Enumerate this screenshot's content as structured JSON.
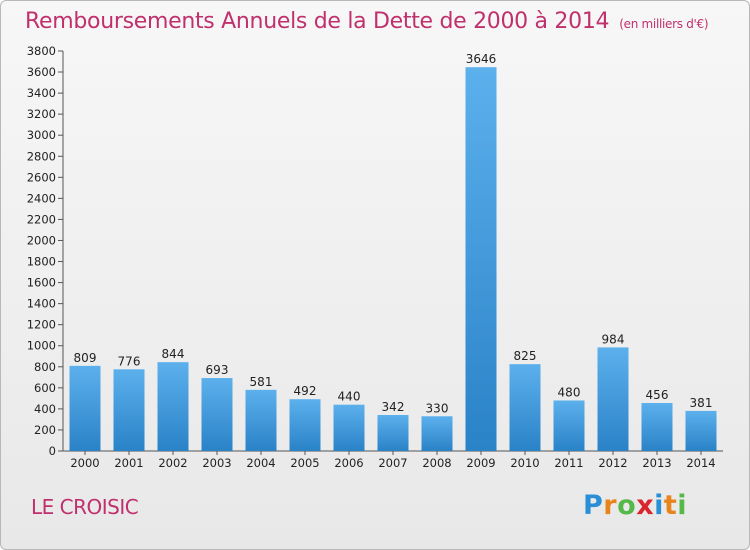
{
  "title": "Remboursements Annuels de la Dette de 2000 à 2014",
  "unit": "(en milliers d'€)",
  "commune": "LE CROISIC",
  "brand": {
    "letters": [
      "P",
      "r",
      "o",
      "x",
      "i",
      "t",
      "i"
    ],
    "colors": [
      "#2a8fd6",
      "#e8841c",
      "#54b948",
      "#d9262e",
      "#2a8fd6",
      "#e8841c",
      "#54b948"
    ]
  },
  "colors": {
    "bar": "#3d98d8",
    "bar_light": "#5fb0ea",
    "title": "#c0306d"
  },
  "chart_data": {
    "type": "bar",
    "categories": [
      "2000",
      "2001",
      "2002",
      "2003",
      "2004",
      "2005",
      "2006",
      "2007",
      "2008",
      "2009",
      "2010",
      "2011",
      "2012",
      "2013",
      "2014"
    ],
    "values": [
      809,
      776,
      844,
      693,
      581,
      492,
      440,
      342,
      330,
      3646,
      825,
      480,
      984,
      456,
      381
    ],
    "ylim": [
      0,
      3800
    ],
    "yticks": [
      0,
      200,
      400,
      600,
      800,
      1000,
      1200,
      1400,
      1600,
      1800,
      2000,
      2200,
      2400,
      2600,
      2800,
      3000,
      3200,
      3400,
      3600,
      3800
    ],
    "grid": false,
    "data_labels": true
  }
}
